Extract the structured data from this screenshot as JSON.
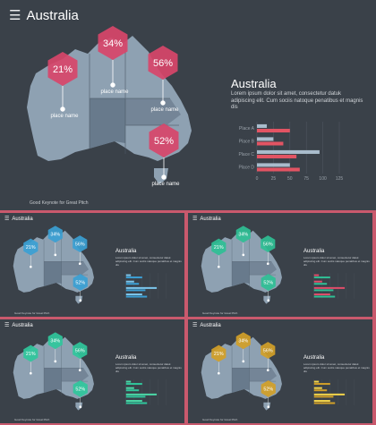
{
  "main": {
    "title": "Australia",
    "panel_title": "Australia",
    "panel_desc": "Lorem ipsum dolor sit amet, consectetur datuk adipiscing elit. Cum sociis natoque penatibus et magnis dis",
    "footer": "Good Keynote for Great Pitch",
    "markers": [
      {
        "pct": "21%",
        "label": "place name"
      },
      {
        "pct": "34%",
        "label": "place name"
      },
      {
        "pct": "56%",
        "label": "place name"
      },
      {
        "pct": "52%",
        "label": "place name"
      }
    ]
  },
  "chart_data": {
    "type": "bar",
    "orientation": "horizontal",
    "categories": [
      "Place A",
      "Place B",
      "Place C",
      "Place D"
    ],
    "series": [
      {
        "values": [
          15,
          25,
          95,
          50
        ]
      },
      {
        "values": [
          50,
          40,
          60,
          65
        ]
      }
    ],
    "x_ticks": [
      0,
      25,
      50,
      75,
      100,
      125
    ],
    "xlim": [
      0,
      125
    ]
  },
  "themes": [
    {
      "title": "Australia",
      "panel_title": "Australia",
      "panel_desc": "Lorem ipsum dolor sit amet, consectetur datuk adipiscing elit. Cum sociis natoque penatibus et magnis dis",
      "footer": "Good Keynote for Great Pitch",
      "pcts": [
        "21%",
        "34%",
        "56%",
        "52%"
      ],
      "hex_color": "#3b9fd4",
      "bar_color_a": "#3b9fd4",
      "bar_color_b": "#7cc6ec"
    },
    {
      "title": "Australia",
      "panel_title": "Australia",
      "panel_desc": "Lorem ipsum dolor sit amet, consectetur datuk adipiscing elit. Cum sociis natoque penatibus et magnis dis",
      "footer": "Good Keynote for Great Pitch",
      "pcts": [
        "21%",
        "34%",
        "56%",
        "52%"
      ],
      "hex_color": "#2fbf95",
      "bar_color_a": "#2fbf95",
      "bar_color_b": "#e04d6a"
    },
    {
      "title": "Australia",
      "panel_title": "Australia",
      "panel_desc": "Lorem ipsum dolor sit amet, consectetur datuk adipiscing elit. Cum sociis natoque penatibus et magnis dis",
      "footer": "Good Keynote for Great Pitch",
      "pcts": [
        "21%",
        "34%",
        "56%",
        "52%"
      ],
      "hex_color": "#30c79c",
      "bar_color_a": "#30c79c",
      "bar_color_b": "#4bd7a6"
    },
    {
      "title": "Australia",
      "panel_title": "Australia",
      "panel_desc": "Lorem ipsum dolor sit amet, consectetur datuk adipiscing elit. Cum sociis natoque penatibus et magnis dis",
      "footer": "Good Keynote for Great Pitch",
      "pcts": [
        "21%",
        "34%",
        "56%",
        "52%"
      ],
      "hex_color": "#d2a028",
      "bar_color_a": "#d2a028",
      "bar_color_b": "#f1d34a"
    }
  ],
  "colors": {
    "background": "#3a4149",
    "frame": "#c9596d",
    "map_fill": "#8ea1b2",
    "map_region": "#5f7082",
    "marker_main": "#d8456a",
    "bar_primary": "#e25463",
    "bar_secondary": "#a9bccc"
  },
  "icons": {
    "menu": "hamburger-menu-icon"
  }
}
